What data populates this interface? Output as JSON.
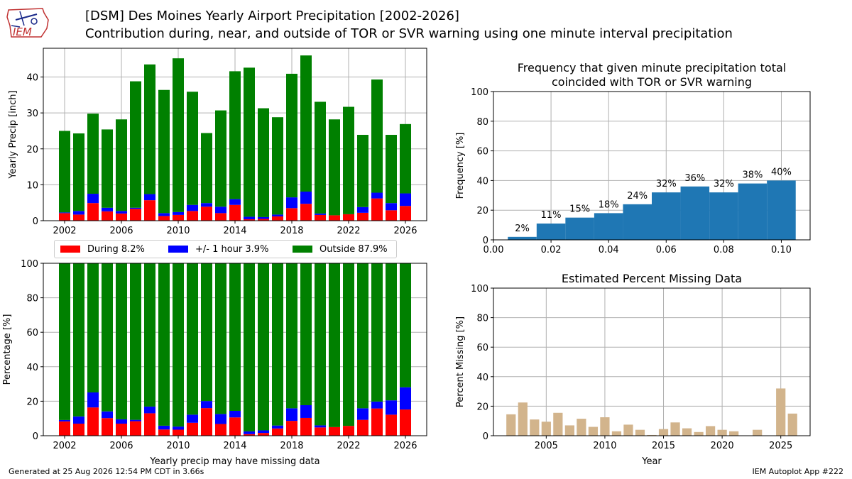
{
  "header": {
    "title_line1": "[DSM] Des Moines Yearly Airport Precipitation [2002-2026]",
    "title_line2": "Contribution during, near, and outside of TOR or SVR warning using one minute interval precipitation"
  },
  "logo": {
    "text": "IEM"
  },
  "footer": {
    "generated": "Generated at 25 Aug 2026 12:54 PM CDT in 3.66s",
    "app": "IEM Autoplot App #222"
  },
  "legend": {
    "items": [
      {
        "label": "During 8.2%",
        "color": "#ff0000"
      },
      {
        "label": "+/- 1 hour 3.9%",
        "color": "#0000ff"
      },
      {
        "label": "Outside 87.9%",
        "color": "#008000"
      }
    ]
  },
  "chart_data": [
    {
      "type": "bar",
      "stacked": true,
      "ylabel": "Yearly Precip [inch]",
      "xlabel": "",
      "ylim": [
        0,
        48
      ],
      "xticks": [
        2002,
        2006,
        2010,
        2014,
        2018,
        2022,
        2026
      ],
      "yticks": [
        0,
        10,
        20,
        30,
        40
      ],
      "grid": true,
      "x": [
        2002,
        2003,
        2004,
        2005,
        2006,
        2007,
        2008,
        2009,
        2010,
        2011,
        2012,
        2013,
        2014,
        2015,
        2016,
        2017,
        2018,
        2019,
        2020,
        2021,
        2022,
        2023,
        2024,
        2025,
        2026
      ],
      "series": [
        {
          "name": "During",
          "color": "#ff0000",
          "values": [
            2.1,
            1.7,
            4.9,
            2.6,
            2.0,
            3.3,
            5.7,
            1.3,
            1.6,
            2.7,
            3.9,
            2.1,
            4.4,
            0.4,
            0.5,
            1.2,
            3.5,
            4.7,
            1.6,
            1.5,
            1.8,
            2.2,
            6.2,
            2.9,
            4.1
          ]
        },
        {
          "name": "+/- 1 hour",
          "color": "#0000ff",
          "values": [
            0.2,
            1.0,
            2.6,
            1.0,
            0.7,
            0.3,
            1.7,
            0.8,
            0.8,
            1.7,
            1.0,
            1.8,
            1.6,
            0.7,
            0.5,
            0.5,
            3.0,
            3.4,
            0.4,
            0.0,
            0.0,
            1.6,
            1.6,
            2.0,
            3.5
          ]
        },
        {
          "name": "Outside",
          "color": "#008000",
          "values": [
            22.7,
            21.6,
            22.3,
            21.8,
            25.5,
            35.2,
            36.1,
            34.3,
            42.8,
            31.5,
            19.5,
            26.8,
            35.6,
            41.5,
            30.3,
            27.1,
            34.4,
            37.9,
            31.1,
            26.7,
            29.9,
            20.1,
            31.5,
            19.0,
            19.3
          ]
        }
      ]
    },
    {
      "type": "bar",
      "stacked": true,
      "ylabel": "Percentage [%]",
      "xlabel": "Yearly precip may have missing data",
      "ylim": [
        0,
        100
      ],
      "xticks": [
        2002,
        2006,
        2010,
        2014,
        2018,
        2022,
        2026
      ],
      "yticks": [
        0,
        20,
        40,
        60,
        80,
        100
      ],
      "grid": true,
      "x": [
        2002,
        2003,
        2004,
        2005,
        2006,
        2007,
        2008,
        2009,
        2010,
        2011,
        2012,
        2013,
        2014,
        2015,
        2016,
        2017,
        2018,
        2019,
        2020,
        2021,
        2022,
        2023,
        2024,
        2025,
        2026
      ],
      "series": [
        {
          "name": "During",
          "color": "#ff0000",
          "values": [
            8.3,
            7.0,
            16.4,
            10.2,
            7.0,
            8.4,
            13.0,
            3.6,
            3.5,
            7.5,
            16.0,
            6.8,
            10.6,
            0.9,
            1.6,
            4.2,
            8.6,
            10.3,
            4.8,
            5.0,
            5.7,
            9.2,
            15.8,
            12.2,
            15.2
          ]
        },
        {
          "name": "+/- 1 hour",
          "color": "#0000ff",
          "values": [
            0.8,
            4.2,
            8.7,
            3.9,
            2.5,
            0.8,
            3.9,
            2.2,
            1.8,
            4.7,
            4.1,
            5.8,
            3.8,
            1.6,
            1.5,
            1.7,
            7.3,
            7.4,
            1.2,
            0.0,
            0.0,
            6.7,
            4.0,
            8.3,
            12.9
          ]
        },
        {
          "name": "Outside",
          "color": "#008000",
          "values": [
            90.9,
            88.8,
            74.9,
            85.9,
            90.5,
            90.8,
            83.1,
            94.2,
            94.7,
            87.8,
            79.9,
            87.4,
            85.6,
            97.5,
            96.9,
            94.1,
            84.1,
            82.3,
            94.0,
            95.0,
            94.3,
            84.1,
            80.2,
            79.5,
            71.9
          ]
        }
      ]
    },
    {
      "type": "bar",
      "title": "Frequency that given minute precipitation total\ncoincided with TOR or SVR warning",
      "ylabel": "Frequency [%]",
      "xlabel": "",
      "xlim": [
        0,
        0.11
      ],
      "ylim": [
        0,
        100
      ],
      "xticks": [
        0.0,
        0.02,
        0.04,
        0.06,
        0.08,
        0.1
      ],
      "xtick_labels": [
        "0.00",
        "0.02",
        "0.04",
        "0.06",
        "0.08",
        "0.10"
      ],
      "yticks": [
        0,
        20,
        40,
        60,
        80,
        100
      ],
      "grid": true,
      "color": "#1f77b4",
      "x": [
        0.01,
        0.02,
        0.03,
        0.04,
        0.05,
        0.06,
        0.07,
        0.08,
        0.09,
        0.1
      ],
      "bar_width": 0.01,
      "values": [
        2,
        11,
        15,
        18,
        24,
        32,
        36,
        32,
        38,
        40
      ],
      "data_labels": [
        "2%",
        "11%",
        "15%",
        "18%",
        "24%",
        "32%",
        "36%",
        "32%",
        "38%",
        "40%"
      ]
    },
    {
      "type": "bar",
      "title": "Estimated Percent Missing Data",
      "ylabel": "Percent Missing [%]",
      "xlabel": "Year",
      "xlim": [
        2000.5,
        2027.5
      ],
      "ylim": [
        0,
        100
      ],
      "xticks": [
        2005,
        2010,
        2015,
        2020,
        2025
      ],
      "yticks": [
        0,
        20,
        40,
        60,
        80,
        100
      ],
      "grid": true,
      "color": "#d2b48c",
      "x": [
        2002,
        2003,
        2004,
        2005,
        2006,
        2007,
        2008,
        2009,
        2010,
        2011,
        2012,
        2013,
        2014,
        2015,
        2016,
        2017,
        2018,
        2019,
        2020,
        2021,
        2022,
        2023,
        2024,
        2025,
        2026
      ],
      "values": [
        14.5,
        22.5,
        11,
        9.5,
        15.5,
        7,
        11.5,
        6,
        12.5,
        3,
        7.5,
        4,
        0.5,
        4.5,
        9,
        5,
        2.5,
        6.5,
        4,
        3,
        0,
        4,
        0,
        32,
        15
      ]
    }
  ]
}
